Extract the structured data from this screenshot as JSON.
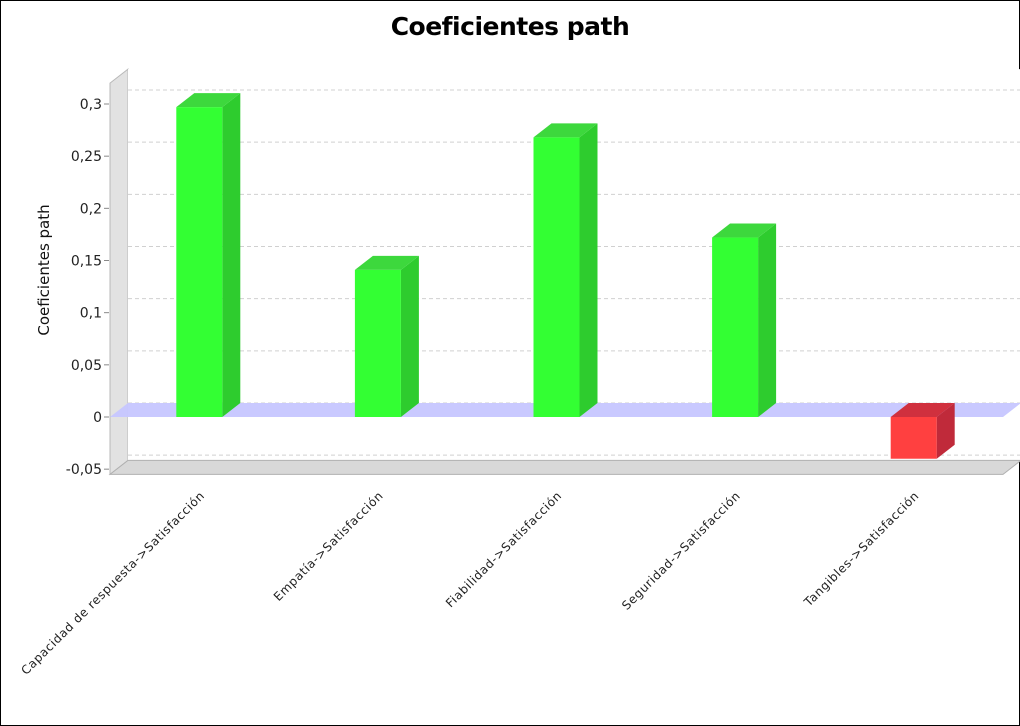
{
  "chart_data": {
    "type": "bar",
    "title": "Coeficientes path",
    "xlabel": "",
    "ylabel": "Coeficientes path",
    "categories": [
      "Capacidad de respuesta->Satisfacción",
      "Empatía->Satisfacción",
      "Fiabilidad->Satisfacción",
      "Seguridad->Satisfacción",
      "Tangibles->Satisfacción"
    ],
    "values": [
      0.297,
      0.141,
      0.268,
      0.172,
      -0.04
    ],
    "ylim": [
      -0.055,
      0.32
    ],
    "yticks": [
      -0.05,
      0,
      0.05,
      0.1,
      0.15,
      0.2,
      0.25,
      0.3
    ],
    "ytick_labels": [
      "-0,05",
      "0",
      "0,05",
      "0,1",
      "0,15",
      "0,2",
      "0,25",
      "0,3"
    ],
    "grid": true,
    "legend": "none",
    "colors": {
      "positive": "#33ff33",
      "positive_side": "#2ecc2e",
      "positive_top": "#3dd83d",
      "negative": "#ff4040",
      "negative_side": "#c02a3a",
      "negative_top": "#d0303e",
      "zero_band": "#c6c6ff",
      "floor": "#d8d8d8",
      "wall": "#e2e2e2",
      "grid": "#d0d0d0"
    }
  }
}
